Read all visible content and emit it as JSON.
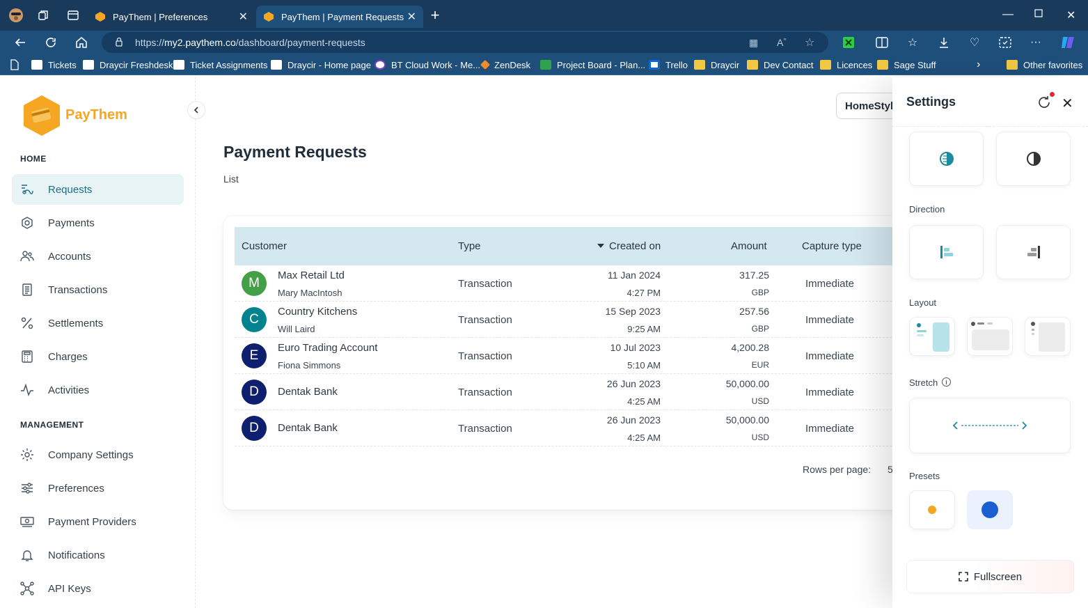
{
  "browser": {
    "tabs": [
      {
        "title": "PayThem | Preferences",
        "active": false
      },
      {
        "title": "PayThem | Payment Requests",
        "active": true
      }
    ],
    "new_tab_symbol": "+",
    "url_prefix": "https://",
    "url_host": "my2.paythem.co",
    "url_path": "/dashboard/payment-requests",
    "bookmarks": [
      {
        "label": "Tickets",
        "icon": "draycir-icon"
      },
      {
        "label": "Draycir Freshdesk",
        "icon": "draycir-icon"
      },
      {
        "label": "Ticket Assignments",
        "icon": "draycir-icon"
      },
      {
        "label": "Draycir - Home page",
        "icon": "draycir-icon"
      },
      {
        "label": "BT Cloud Work - Me...",
        "icon": "bt-icon"
      },
      {
        "label": "ZenDesk",
        "icon": "zendesk-icon"
      },
      {
        "label": "Project Board - Plan...",
        "icon": "planner-icon"
      },
      {
        "label": "Trello",
        "icon": "trello-icon"
      },
      {
        "label": "Draycir",
        "icon": "folder-icon"
      },
      {
        "label": "Dev Contact",
        "icon": "folder-icon"
      },
      {
        "label": "Licences",
        "icon": "folder-icon"
      },
      {
        "label": "Sage Stuff",
        "icon": "folder-icon"
      }
    ],
    "other_favorites": "Other favorites"
  },
  "sidebar": {
    "brand": "PayThem",
    "home_header": "HOME",
    "management_header": "MANAGEMENT",
    "home_items": [
      {
        "label": "Requests",
        "icon": "requests-icon",
        "active": true
      },
      {
        "label": "Payments",
        "icon": "payments-icon"
      },
      {
        "label": "Accounts",
        "icon": "accounts-icon"
      },
      {
        "label": "Transactions",
        "icon": "transactions-icon"
      },
      {
        "label": "Settlements",
        "icon": "percent-icon"
      },
      {
        "label": "Charges",
        "icon": "calculator-icon"
      },
      {
        "label": "Activities",
        "icon": "activity-icon"
      }
    ],
    "management_items": [
      {
        "label": "Company Settings",
        "icon": "gear-icon"
      },
      {
        "label": "Preferences",
        "icon": "sliders-icon"
      },
      {
        "label": "Payment Providers",
        "icon": "banknote-icon"
      },
      {
        "label": "Notifications",
        "icon": "bell-icon"
      },
      {
        "label": "API Keys",
        "icon": "network-icon"
      }
    ]
  },
  "main": {
    "title": "Payment Requests",
    "breadcrumb": "List",
    "company_selector": "HomeStyl",
    "table": {
      "columns": [
        "Customer",
        "Type",
        "Created on",
        "Amount",
        "Capture type"
      ],
      "sort_column": "Created on",
      "rows": [
        {
          "initial": "M",
          "avatar_color": "#43a047",
          "customer": "Max Retail Ltd",
          "contact": "Mary MacIntosh",
          "type": "Transaction",
          "date": "11 Jan 2024",
          "time": "4:27 PM",
          "amount": "317.25",
          "currency": "GBP",
          "capture": "Immediate"
        },
        {
          "initial": "C",
          "avatar_color": "#00838f",
          "customer": "Country Kitchens",
          "contact": "Will Laird",
          "type": "Transaction",
          "date": "15 Sep 2023",
          "time": "9:25 AM",
          "amount": "257.56",
          "currency": "GBP",
          "capture": "Immediate"
        },
        {
          "initial": "E",
          "avatar_color": "#0d1f6e",
          "customer": "Euro Trading Account",
          "contact": "Fiona Simmons",
          "type": "Transaction",
          "date": "10 Jul 2023",
          "time": "5:10 AM",
          "amount": "4,200.28",
          "currency": "EUR",
          "capture": "Immediate"
        },
        {
          "initial": "D",
          "avatar_color": "#0d1f6e",
          "customer": "Dentak Bank",
          "contact": "",
          "type": "Transaction",
          "date": "26 Jun 2023",
          "time": "4:25 AM",
          "amount": "50,000.00",
          "currency": "USD",
          "capture": "Immediate"
        },
        {
          "initial": "D",
          "avatar_color": "#0d1f6e",
          "customer": "Dentak Bank",
          "contact": "",
          "type": "Transaction",
          "date": "26 Jun 2023",
          "time": "4:25 AM",
          "amount": "50,000.00",
          "currency": "USD",
          "capture": "Immediate"
        }
      ],
      "rows_per_page_label": "Rows per page:",
      "rows_per_page_value": "5"
    }
  },
  "settings": {
    "title": "Settings",
    "direction_label": "Direction",
    "layout_label": "Layout",
    "stretch_label": "Stretch",
    "presets_label": "Presets",
    "fullscreen_label": "Fullscreen",
    "preset_colors": [
      "#f5a623",
      "#1a5fd1"
    ],
    "selected_preset": 1
  },
  "colors": {
    "brand_orange": "#f5a623",
    "accent_teal": "#1d6f83",
    "table_header": "#d4e8f0",
    "browser_tab": "#1a3a5c"
  }
}
